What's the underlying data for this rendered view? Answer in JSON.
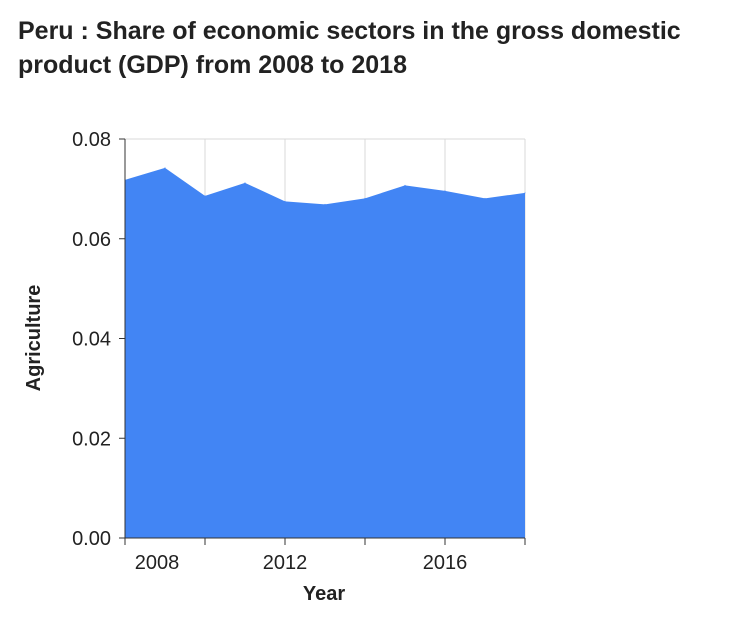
{
  "chart_data": {
    "type": "area",
    "title": "Peru : Share of economic sectors in the gross domestic product (GDP) from 2008 to 2018",
    "xlabel": "Year",
    "ylabel": "Agriculture",
    "x": [
      2008,
      2009,
      2010,
      2011,
      2012,
      2013,
      2014,
      2015,
      2016,
      2017,
      2018
    ],
    "series": [
      {
        "values": [
          0.0718,
          0.0742,
          0.0686,
          0.0712,
          0.0675,
          0.0669,
          0.0681,
          0.0707,
          0.0696,
          0.0681,
          0.0692
        ]
      }
    ],
    "xlim": [
      2008,
      2018
    ],
    "ylim": [
      0,
      0.08
    ],
    "x_ticks": [
      2008,
      2012,
      2016
    ],
    "x_tick_labels": [
      "2008",
      "2012",
      "2016"
    ],
    "x_grid_years": [
      2008,
      2010,
      2012,
      2014,
      2016,
      2018
    ],
    "y_ticks": [
      0.0,
      0.02,
      0.04,
      0.06,
      0.08
    ],
    "y_tick_labels": [
      "0.00",
      "0.02",
      "0.04",
      "0.06",
      "0.08"
    ],
    "grid": true,
    "legend": "none",
    "fill_color": "#4285f4"
  }
}
